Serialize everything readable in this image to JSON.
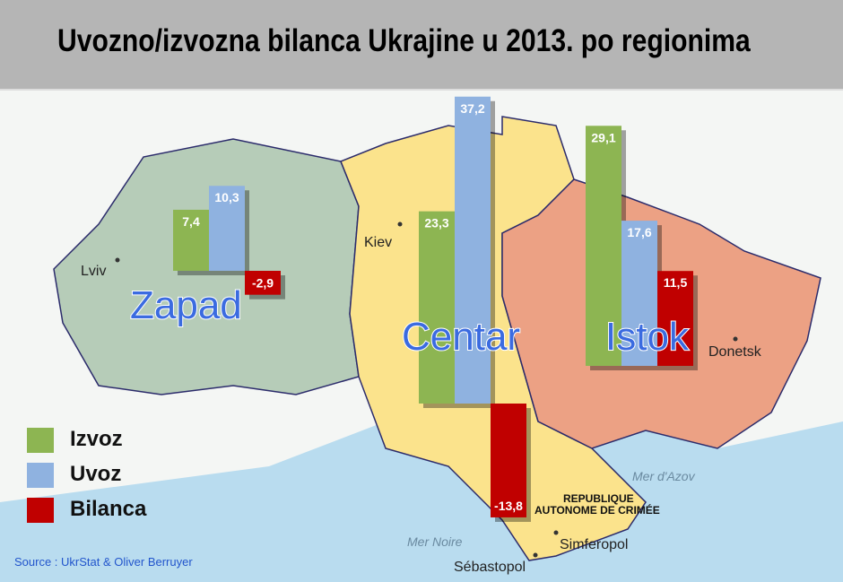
{
  "chart_data": {
    "type": "bar",
    "title": "Uvozno/izvozna bilanca Ukrajine u 2013. po regionima",
    "categories": [
      "Zapad",
      "Centar",
      "Istok"
    ],
    "series": [
      {
        "name": "Izvoz",
        "color": "#8db552",
        "values": [
          7.4,
          23.3,
          29.1
        ]
      },
      {
        "name": "Uvoz",
        "color": "#8fb2e0",
        "values": [
          10.3,
          37.2,
          17.6
        ]
      },
      {
        "name": "Bilanca",
        "color": "#c00000",
        "values": [
          -2.9,
          -13.8,
          11.5
        ]
      }
    ],
    "data_labels": [
      [
        "7,4",
        "10,3",
        "-2,9"
      ],
      [
        "23,3",
        "37,2",
        "-13,8"
      ],
      [
        "29,1",
        "17,6",
        "11,5"
      ]
    ],
    "legend_placement": "bottom-left",
    "background": "map of Ukraine"
  },
  "map_labels": {
    "lviv": "Lviv",
    "kiev": "Kiev",
    "donetsk": "Donetsk",
    "simferopol": "Simferopol",
    "sebastopol": "Sébastopol",
    "mer_noire": "Mer Noire",
    "mer_azov": "Mer d'Azov",
    "crimea_1": "REPUBLIQUE",
    "crimea_2": "AUTONOME DE CRIMÉE"
  },
  "region_colors": {
    "zapad": "#b6ccb8",
    "centar": "#fbe38c",
    "istok": "#eca184",
    "sea": "#b9dcef"
  },
  "source": "Source : UkrStat & Oliver Berruyer"
}
